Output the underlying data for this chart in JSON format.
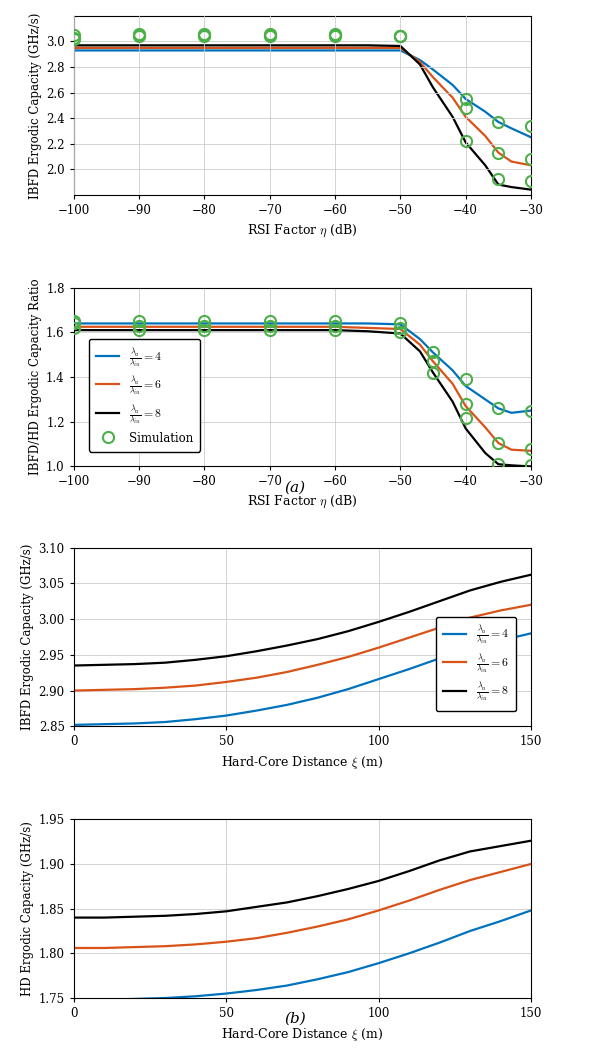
{
  "colors": {
    "blue": "#0072BD",
    "red": "#D95319",
    "black": "#000000",
    "green": "#4DAF4A",
    "grid": "#CCCCCC"
  },
  "legend_labels": {
    "blue": "$\\frac{\\lambda_a}{\\lambda_{iu}} = 4$",
    "red": "$\\frac{\\lambda_a}{\\lambda_{iu}} = 6$",
    "black": "$\\frac{\\lambda_a}{\\lambda_{iu}} = 8$",
    "sim": "Simulation"
  },
  "plot_a1": {
    "ylabel": "IBFD Ergodic Capacity (GHz/s)",
    "xlabel": "RSI Factor $\\eta$ (dB)",
    "xlim": [
      -100,
      -30
    ],
    "ylim": [
      1.8,
      3.2
    ],
    "yticks": [
      2.0,
      2.2,
      2.4,
      2.6,
      2.8,
      3.0
    ],
    "xticks": [
      -100,
      -90,
      -80,
      -70,
      -60,
      -50,
      -40,
      -30
    ],
    "x": [
      -100,
      -90,
      -80,
      -70,
      -60,
      -55,
      -50,
      -47,
      -45,
      -42,
      -40,
      -37,
      -35,
      -33,
      -30
    ],
    "y_blue": [
      2.93,
      2.93,
      2.93,
      2.93,
      2.93,
      2.93,
      2.93,
      2.855,
      2.78,
      2.66,
      2.55,
      2.45,
      2.37,
      2.32,
      2.25
    ],
    "y_red": [
      2.95,
      2.95,
      2.95,
      2.95,
      2.95,
      2.95,
      2.95,
      2.84,
      2.72,
      2.56,
      2.41,
      2.26,
      2.13,
      2.06,
      2.03
    ],
    "y_black": [
      2.97,
      2.97,
      2.97,
      2.97,
      2.97,
      2.97,
      2.965,
      2.82,
      2.64,
      2.41,
      2.21,
      2.03,
      1.88,
      1.86,
      1.84
    ],
    "sim_x": [
      -100,
      -90,
      -80,
      -70,
      -60,
      -50,
      -40,
      -35,
      -30
    ],
    "sim_y_blue": [
      3.02,
      3.04,
      3.04,
      3.04,
      3.04,
      3.04,
      2.55,
      2.37,
      2.34
    ],
    "sim_y_red": [
      3.03,
      3.05,
      3.05,
      3.05,
      3.05,
      3.04,
      2.48,
      2.13,
      2.08
    ],
    "sim_y_black": [
      3.05,
      3.06,
      3.06,
      3.06,
      3.06,
      3.04,
      2.22,
      1.92,
      1.91
    ]
  },
  "plot_a2": {
    "ylabel": "IBFD/HD Ergodic Capacity Ratio",
    "xlabel": "RSI Factor $\\eta$ (dB)",
    "xlim": [
      -100,
      -30
    ],
    "ylim": [
      1.0,
      1.8
    ],
    "yticks": [
      1.0,
      1.2,
      1.4,
      1.6,
      1.8
    ],
    "xticks": [
      -100,
      -90,
      -80,
      -70,
      -60,
      -50,
      -40,
      -30
    ],
    "x": [
      -100,
      -90,
      -80,
      -70,
      -60,
      -55,
      -50,
      -47,
      -45,
      -42,
      -40,
      -37,
      -35,
      -33,
      -30
    ],
    "y_blue": [
      1.64,
      1.64,
      1.64,
      1.64,
      1.64,
      1.64,
      1.636,
      1.57,
      1.51,
      1.43,
      1.36,
      1.3,
      1.26,
      1.24,
      1.25
    ],
    "y_red": [
      1.625,
      1.625,
      1.625,
      1.625,
      1.625,
      1.62,
      1.615,
      1.545,
      1.47,
      1.37,
      1.27,
      1.175,
      1.105,
      1.075,
      1.07
    ],
    "y_black": [
      1.61,
      1.61,
      1.61,
      1.61,
      1.61,
      1.605,
      1.595,
      1.515,
      1.42,
      1.29,
      1.17,
      1.06,
      1.01,
      1.005,
      1.0
    ],
    "sim_x": [
      -100,
      -90,
      -80,
      -70,
      -60,
      -50,
      -45,
      -40,
      -35,
      -30
    ],
    "sim_y_blue": [
      1.65,
      1.65,
      1.65,
      1.652,
      1.652,
      1.64,
      1.51,
      1.39,
      1.26,
      1.25
    ],
    "sim_y_red": [
      1.64,
      1.627,
      1.628,
      1.628,
      1.628,
      1.62,
      1.47,
      1.28,
      1.105,
      1.08
    ],
    "sim_y_black": [
      1.62,
      1.612,
      1.612,
      1.612,
      1.612,
      1.6,
      1.42,
      1.215,
      1.01,
      1.005
    ]
  },
  "plot_b1": {
    "ylabel": "IBFD Ergodic Capacity (GHz/s)",
    "xlabel": "Hard-Core Distance $\\xi$ (m)",
    "xlim": [
      0,
      150
    ],
    "ylim": [
      2.85,
      3.1
    ],
    "yticks": [
      2.85,
      2.9,
      2.95,
      3.0,
      3.05,
      3.1
    ],
    "xticks": [
      0,
      50,
      100,
      150
    ],
    "x": [
      0,
      10,
      20,
      30,
      40,
      50,
      60,
      70,
      80,
      90,
      100,
      110,
      120,
      130,
      140,
      150
    ],
    "y_blue": [
      2.852,
      2.853,
      2.854,
      2.856,
      2.86,
      2.865,
      2.872,
      2.88,
      2.89,
      2.902,
      2.916,
      2.93,
      2.945,
      2.96,
      2.97,
      2.98
    ],
    "y_red": [
      2.9,
      2.901,
      2.902,
      2.904,
      2.907,
      2.912,
      2.918,
      2.926,
      2.936,
      2.947,
      2.96,
      2.974,
      2.988,
      3.002,
      3.012,
      3.02
    ],
    "y_black": [
      2.935,
      2.936,
      2.937,
      2.939,
      2.943,
      2.948,
      2.955,
      2.963,
      2.972,
      2.983,
      2.996,
      3.01,
      3.025,
      3.04,
      3.052,
      3.062
    ]
  },
  "plot_b2": {
    "ylabel": "HD Ergodic Capacity (GHz/s)",
    "xlabel": "Hard-Core Distance $\\xi$ (m)",
    "xlim": [
      0,
      150
    ],
    "ylim": [
      1.75,
      1.95
    ],
    "yticks": [
      1.75,
      1.8,
      1.85,
      1.9,
      1.95
    ],
    "xticks": [
      0,
      50,
      100,
      150
    ],
    "x": [
      0,
      10,
      20,
      30,
      40,
      50,
      60,
      70,
      80,
      90,
      100,
      110,
      120,
      130,
      140,
      150
    ],
    "y_blue": [
      1.748,
      1.748,
      1.749,
      1.75,
      1.752,
      1.755,
      1.759,
      1.764,
      1.771,
      1.779,
      1.789,
      1.8,
      1.812,
      1.825,
      1.836,
      1.848
    ],
    "y_red": [
      1.806,
      1.806,
      1.807,
      1.808,
      1.81,
      1.813,
      1.817,
      1.823,
      1.83,
      1.838,
      1.848,
      1.859,
      1.871,
      1.882,
      1.891,
      1.9
    ],
    "y_black": [
      1.84,
      1.84,
      1.841,
      1.842,
      1.844,
      1.847,
      1.852,
      1.857,
      1.864,
      1.872,
      1.881,
      1.892,
      1.904,
      1.914,
      1.92,
      1.926
    ]
  },
  "label_a": "(a)",
  "label_b": "(b)"
}
